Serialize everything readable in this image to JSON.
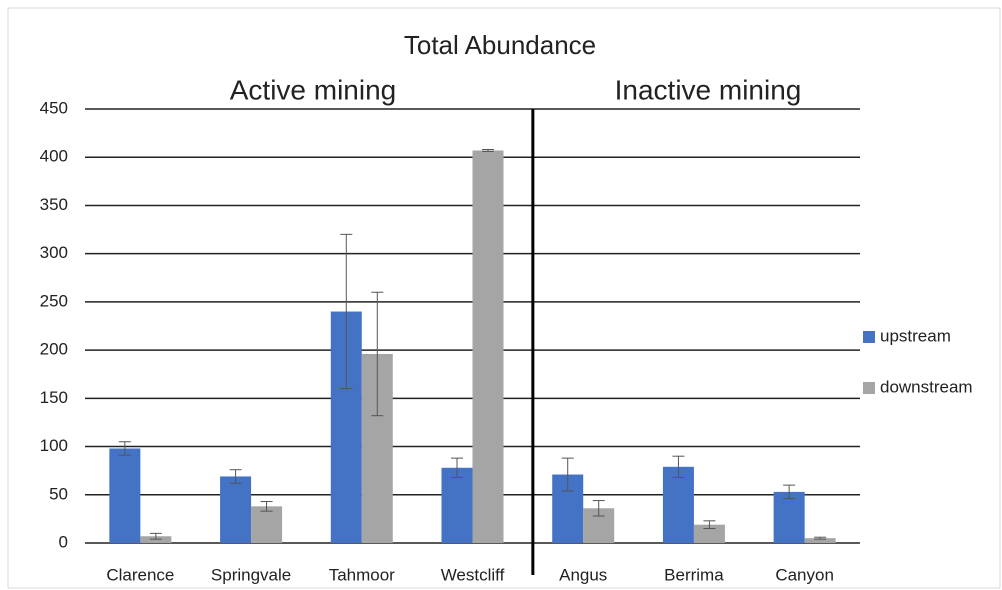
{
  "chart_data": {
    "type": "bar",
    "title": "Total Abundance",
    "annotations": [
      "Active mining",
      "Inactive mining"
    ],
    "categories": [
      "Clarence",
      "Springvale",
      "Tahmoor",
      "Westcliff",
      "Angus",
      "Berrima",
      "Canyon"
    ],
    "series": [
      {
        "name": "upstream",
        "color": "#4472c4",
        "values": [
          98,
          69,
          240,
          78,
          71,
          79,
          53
        ],
        "errors": [
          7,
          7,
          80,
          10,
          17,
          11,
          7
        ]
      },
      {
        "name": "downstream",
        "color": "#a5a5a5",
        "values": [
          7,
          38,
          196,
          407,
          36,
          19,
          5
        ],
        "errors": [
          3,
          5,
          64,
          1,
          8,
          4,
          1
        ]
      }
    ],
    "ylim": [
      0,
      450
    ],
    "yticks": [
      0,
      50,
      100,
      150,
      200,
      250,
      300,
      350,
      400,
      450
    ],
    "grid": true,
    "legend": "right"
  }
}
